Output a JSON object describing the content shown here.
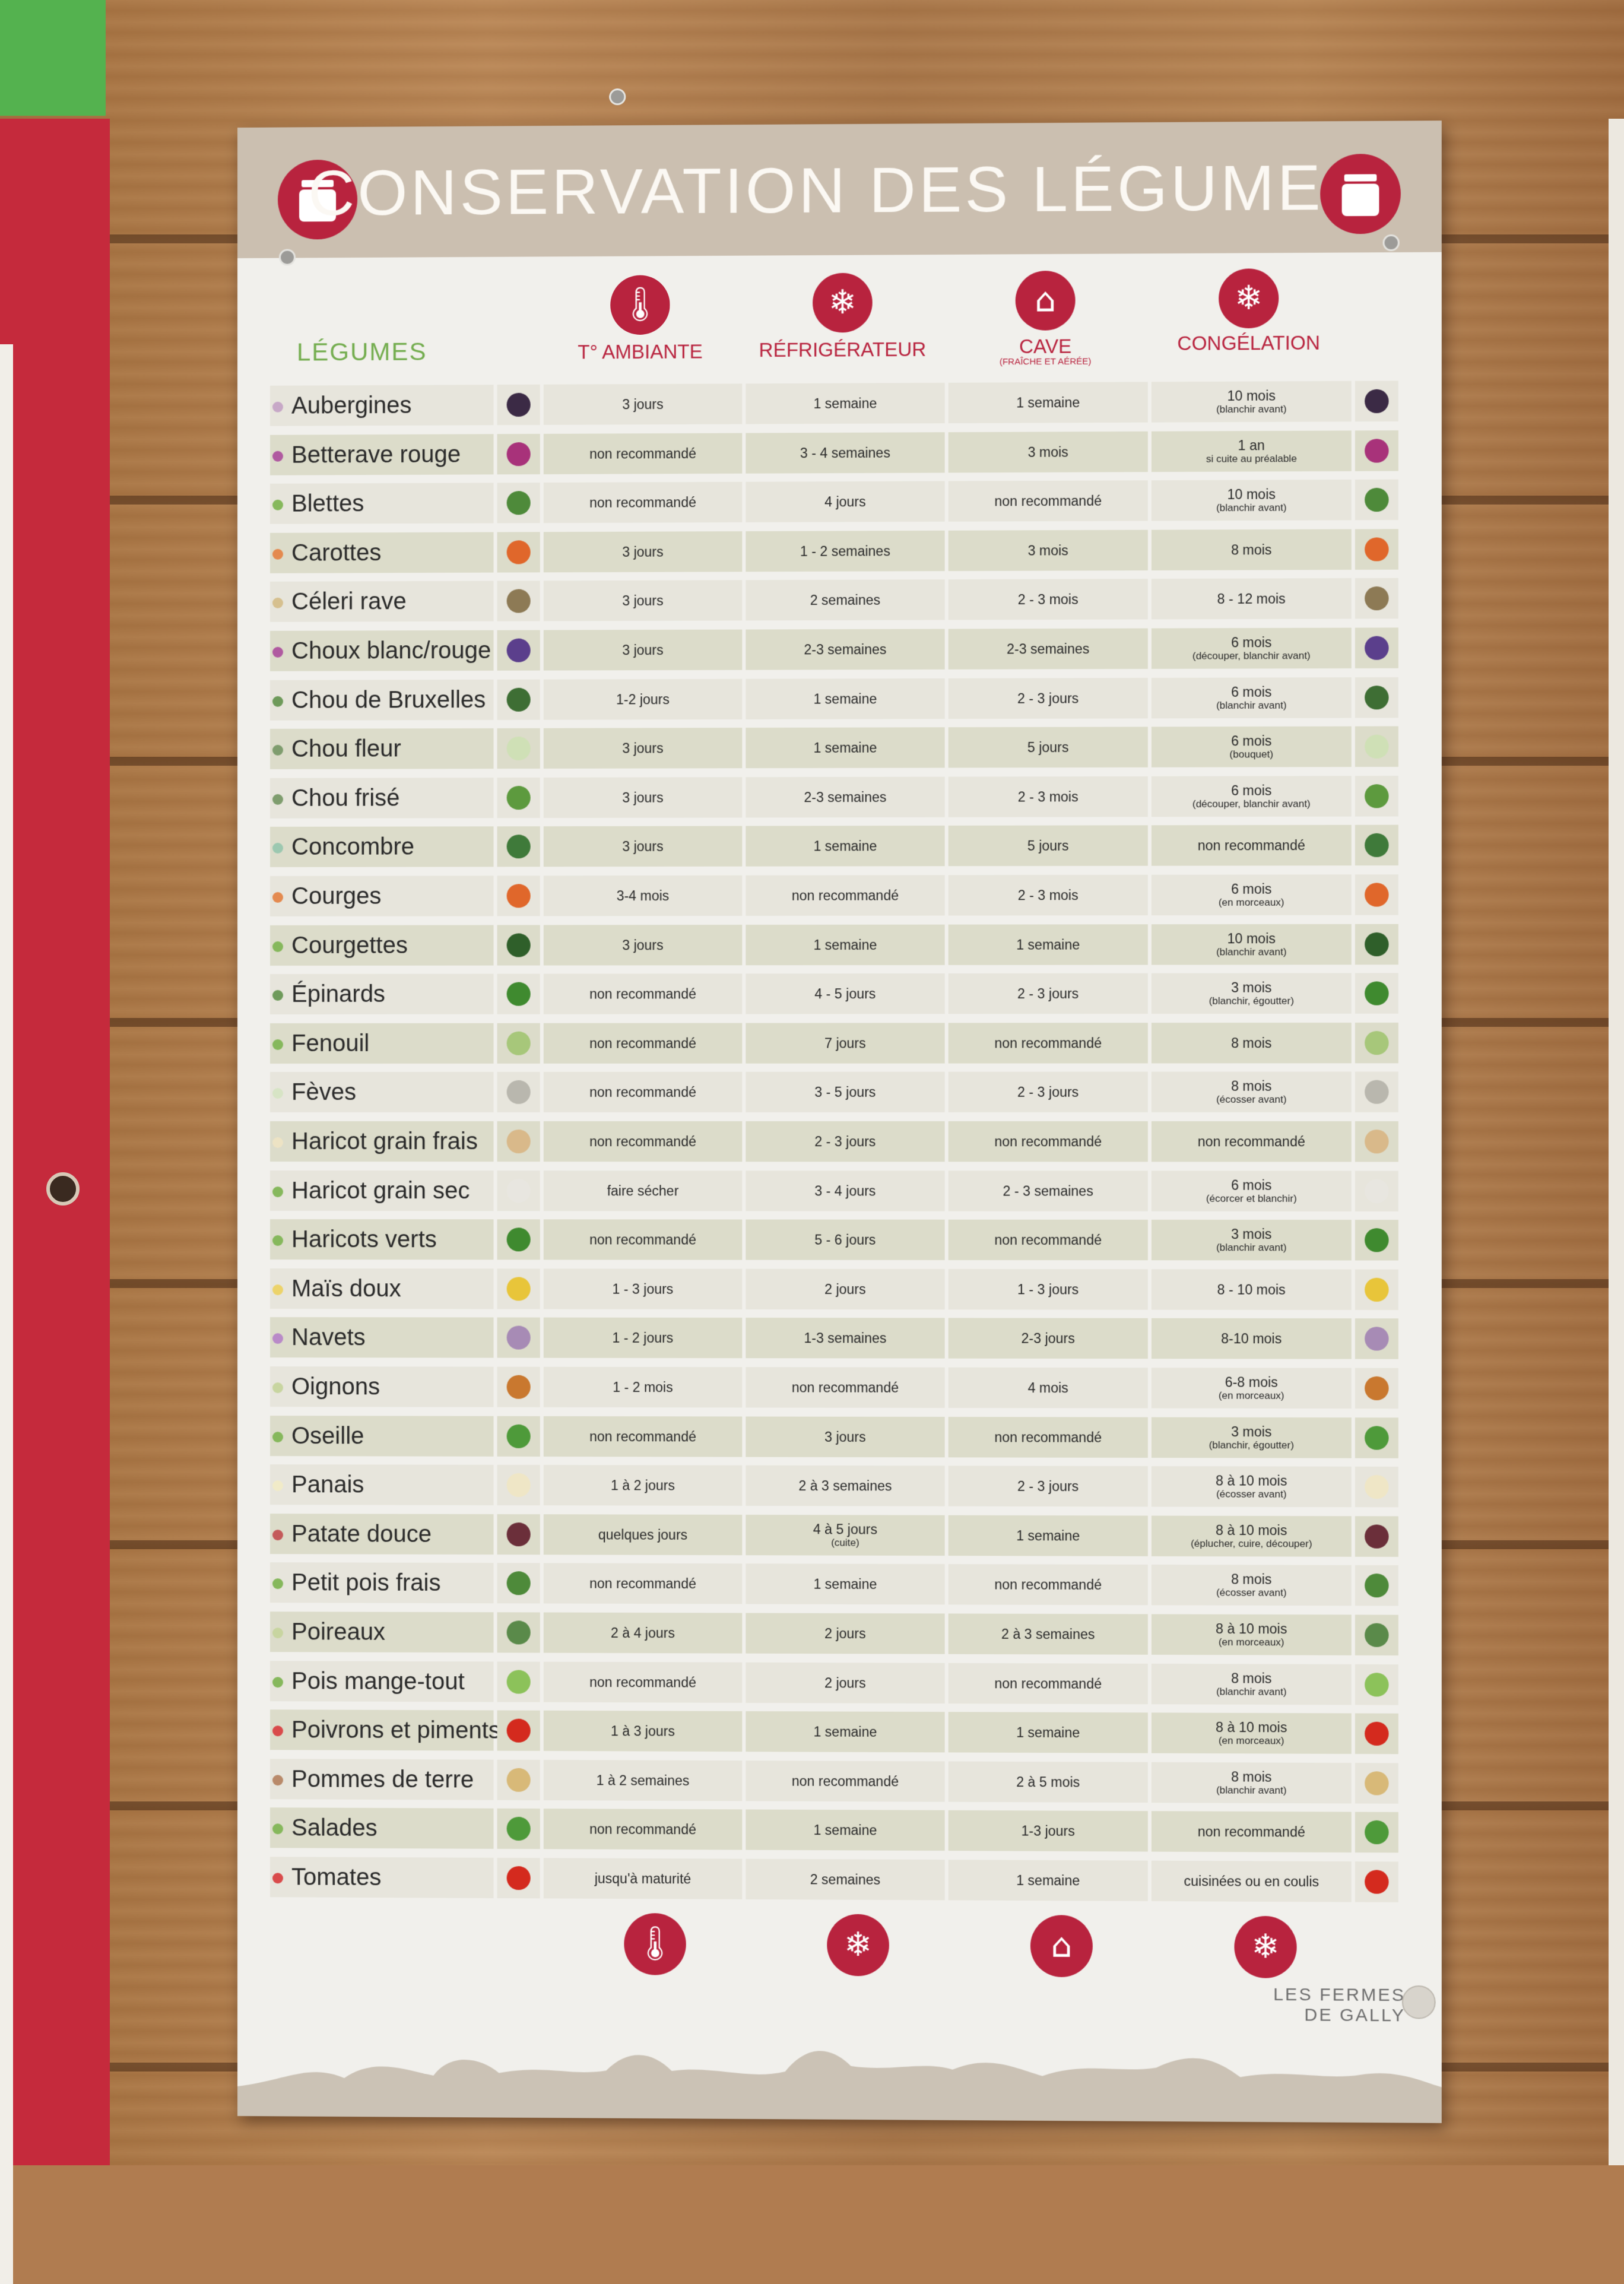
{
  "title": "CONSERVATION DES LÉGUMES",
  "header": {
    "vegetables_label": "LÉGUMES",
    "columns": [
      {
        "label": "T° AMBIANTE",
        "sub": "",
        "icon": "thermometer-icon"
      },
      {
        "label": "RÉFRIGÉRATEUR",
        "sub": "",
        "icon": "fridge-icon"
      },
      {
        "label": "CAVE",
        "sub": "(FRAÎCHE ET AÉRÉE)",
        "icon": "cellar-icon"
      },
      {
        "label": "CONGÉLATION",
        "sub": "",
        "icon": "snowflake-icon"
      }
    ]
  },
  "brand": {
    "line1": "LES FERMES",
    "line2": "DE GALLY"
  },
  "rows": [
    {
      "name": "Aubergines",
      "dot": "#c7a8c7",
      "pic": "#3b2a45",
      "c1": "3 jours",
      "c2": "1 semaine",
      "c3": "1 semaine",
      "c4": "10 mois",
      "c4_note": "(blanchir avant)"
    },
    {
      "name": "Betterave rouge",
      "dot": "#b05aa0",
      "pic": "#a8327a",
      "c1": "non recommandé",
      "c2": "3 - 4 semaines",
      "c3": "3 mois",
      "c4": "1 an",
      "c4_note": "si cuite au préalable"
    },
    {
      "name": "Blettes",
      "dot": "#86b85c",
      "pic": "#4e8a3a",
      "c1": "non recommandé",
      "c2": "4 jours",
      "c3": "non recommandé",
      "c4": "10 mois",
      "c4_note": "(blanchir avant)"
    },
    {
      "name": "Carottes",
      "dot": "#e48a4f",
      "pic": "#e0672b",
      "c1": "3 jours",
      "c2": "1 - 2 semaines",
      "c3": "3 mois",
      "c4": "8 mois",
      "c4_note": ""
    },
    {
      "name": "Céleri rave",
      "dot": "#d6c08f",
      "pic": "#8d7a55",
      "c1": "3 jours",
      "c2": "2 semaines",
      "c3": "2 - 3 mois",
      "c4": "8 - 12 mois",
      "c4_note": ""
    },
    {
      "name": "Choux blanc/rouge",
      "dot": "#b05aa0",
      "pic": "#5b3f8c",
      "c1": "3 jours",
      "c2": "2-3 semaines",
      "c3": "2-3 semaines",
      "c4": "6 mois",
      "c4_note": "(découper, blanchir avant)"
    },
    {
      "name": "Chou de Bruxelles",
      "dot": "#6e9a5a",
      "pic": "#3e6e34",
      "c1": "1-2 jours",
      "c2": "1 semaine",
      "c3": "2 - 3 jours",
      "c4": "6 mois",
      "c4_note": "(blanchir avant)"
    },
    {
      "name": "Chou fleur",
      "dot": "#7f9d6e",
      "pic": "#cfe0b6",
      "c1": "3 jours",
      "c2": "1 semaine",
      "c3": "5 jours",
      "c4": "6 mois",
      "c4_note": "(bouquet)"
    },
    {
      "name": "Chou frisé",
      "dot": "#7f9d6e",
      "pic": "#5d9a3e",
      "c1": "3 jours",
      "c2": "2-3 semaines",
      "c3": "2 - 3 mois",
      "c4": "6 mois",
      "c4_note": "(découper, blanchir avant)"
    },
    {
      "name": "Concombre",
      "dot": "#9cc8b0",
      "pic": "#3f7a3a",
      "c1": "3 jours",
      "c2": "1 semaine",
      "c3": "5 jours",
      "c4": "non recommandé",
      "c4_note": ""
    },
    {
      "name": "Courges",
      "dot": "#e48a4f",
      "pic": "#e0672b",
      "c1": "3-4 mois",
      "c2": "non recommandé",
      "c3": "2 - 3 mois",
      "c4": "6 mois",
      "c4_note": "(en morceaux)"
    },
    {
      "name": "Courgettes",
      "dot": "#86b85c",
      "pic": "#2f5f2a",
      "c1": "3 jours",
      "c2": "1 semaine",
      "c3": "1 semaine",
      "c4": "10 mois",
      "c4_note": "(blanchir avant)"
    },
    {
      "name": "Épinards",
      "dot": "#6e9a5a",
      "pic": "#3f8a2f",
      "c1": "non recommandé",
      "c2": "4 - 5 jours",
      "c3": "2 - 3 jours",
      "c4": "3 mois",
      "c4_note": "(blanchir, égoutter)"
    },
    {
      "name": "Fenouil",
      "dot": "#86b85c",
      "pic": "#a7c77a",
      "c1": "non recommandé",
      "c2": "7 jours",
      "c3": "non recommandé",
      "c4": "8 mois",
      "c4_note": ""
    },
    {
      "name": "Fèves",
      "dot": "#d7e4c5",
      "pic": "#b9b7ae",
      "c1": "non recommandé",
      "c2": "3 - 5 jours",
      "c3": "2 - 3 jours",
      "c4": "8 mois",
      "c4_note": "(écosser avant)"
    },
    {
      "name": "Haricot grain frais",
      "dot": "#ede3c4",
      "pic": "#d9b98a",
      "c1": "non recommandé",
      "c2": "2 - 3 jours",
      "c3": "non recommandé",
      "c4": "non recommandé",
      "c4_note": ""
    },
    {
      "name": "Haricot grain sec",
      "dot": "#86b85c",
      "pic": "#e8e6e0",
      "c1": "faire sécher",
      "c2": "3 - 4 jours",
      "c3": "2 - 3 semaines",
      "c4": "6 mois",
      "c4_note": "(écorcer et blanchir)"
    },
    {
      "name": "Haricots verts",
      "dot": "#86b85c",
      "pic": "#3f8a2f",
      "c1": "non recommandé",
      "c2": "5 - 6 jours",
      "c3": "non recommandé",
      "c4": "3 mois",
      "c4_note": "(blanchir avant)"
    },
    {
      "name": "Maïs doux",
      "dot": "#ecd36a",
      "pic": "#e8c53a",
      "c1": "1 - 3 jours",
      "c2": "2 jours",
      "c3": "1 - 3 jours",
      "c4": "8 - 10 mois",
      "c4_note": ""
    },
    {
      "name": "Navets",
      "dot": "#b98ac8",
      "pic": "#a78bb5",
      "c1": "1 - 2 jours",
      "c2": "1-3 semaines",
      "c3": "2-3 jours",
      "c4": "8-10 mois",
      "c4_note": ""
    },
    {
      "name": "Oignons",
      "dot": "#c8d5a0",
      "pic": "#c9782f",
      "c1": "1 - 2 mois",
      "c2": "non recommandé",
      "c3": "4 mois",
      "c4": "6-8 mois",
      "c4_note": "(en morceaux)"
    },
    {
      "name": "Oseille",
      "dot": "#86b85c",
      "pic": "#4e9a3a",
      "c1": "non recommandé",
      "c2": "3 jours",
      "c3": "non recommandé",
      "c4": "3 mois",
      "c4_note": "(blanchir, égoutter)"
    },
    {
      "name": "Panais",
      "dot": "#f1ebc8",
      "pic": "#efe6c6",
      "c1": "1 à 2 jours",
      "c2": "2 à 3 semaines",
      "c3": "2 - 3 jours",
      "c4": "8 à 10 mois",
      "c4_note": "(écosser avant)"
    },
    {
      "name": "Patate douce",
      "dot": "#c45a5a",
      "pic": "#6b2f3a",
      "c1": "quelques jours",
      "c2": "4 à 5 jours",
      "c2_note": "(cuite)",
      "c3": "1 semaine",
      "c4": "8 à 10 mois",
      "c4_note": "(éplucher, cuire, découper)"
    },
    {
      "name": "Petit pois frais",
      "dot": "#86b85c",
      "pic": "#4e8a3a",
      "c1": "non recommandé",
      "c2": "1 semaine",
      "c3": "non recommandé",
      "c4": "8 mois",
      "c4_note": "(écosser avant)"
    },
    {
      "name": "Poireaux",
      "dot": "#c8d5a0",
      "pic": "#5a8a4a",
      "c1": "2 à 4 jours",
      "c2": "2 jours",
      "c3": "2 à 3 semaines",
      "c4": "8 à 10 mois",
      "c4_note": "(en morceaux)"
    },
    {
      "name": "Pois mange-tout",
      "dot": "#86b85c",
      "pic": "#8cc25a",
      "c1": "non recommandé",
      "c2": "2 jours",
      "c3": "non recommandé",
      "c4": "8 mois",
      "c4_note": "(blanchir avant)"
    },
    {
      "name": "Poivrons et piments",
      "dot": "#d94b4b",
      "pic": "#d42a1e",
      "c1": "1 à 3 jours",
      "c2": "1 semaine",
      "c3": "1 semaine",
      "c4": "8 à 10 mois",
      "c4_note": "(en morceaux)"
    },
    {
      "name": "Pommes de terre",
      "dot": "#b98a6a",
      "pic": "#d8b978",
      "c1": "1 à 2 semaines",
      "c2": "non recommandé",
      "c3": "2 à 5 mois",
      "c4": "8 mois",
      "c4_note": "(blanchir avant)"
    },
    {
      "name": "Salades",
      "dot": "#86b85c",
      "pic": "#4e9a3a",
      "c1": "non recommandé",
      "c2": "1 semaine",
      "c3": "1-3 jours",
      "c4": "non recommandé",
      "c4_note": ""
    },
    {
      "name": "Tomates",
      "dot": "#d94b4b",
      "pic": "#d42a1e",
      "c1": "jusqu'à maturité",
      "c2": "2 semaines",
      "c3": "1 semaine",
      "c4": "cuisinées ou en coulis",
      "c4_note": ""
    }
  ]
}
